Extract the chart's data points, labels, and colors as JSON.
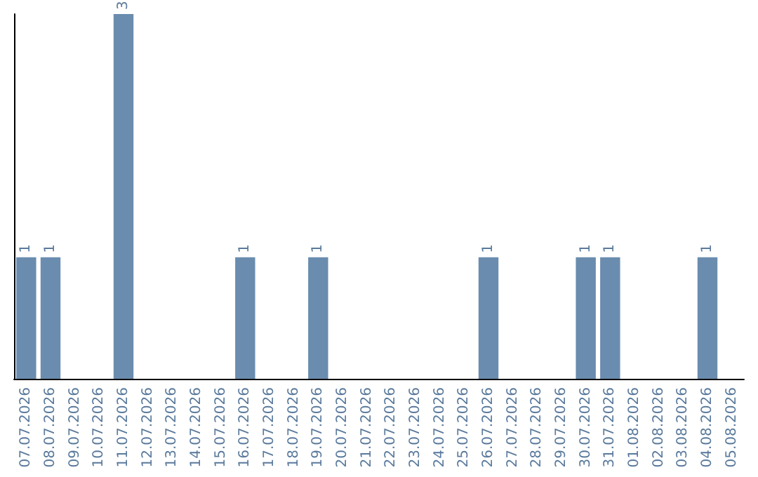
{
  "chart_data": {
    "type": "bar",
    "categories": [
      "07.07.2026",
      "08.07.2026",
      "09.07.2026",
      "10.07.2026",
      "11.07.2026",
      "12.07.2026",
      "13.07.2026",
      "14.07.2026",
      "15.07.2026",
      "16.07.2026",
      "17.07.2026",
      "18.07.2026",
      "19.07.2026",
      "20.07.2026",
      "21.07.2026",
      "22.07.2026",
      "23.07.2026",
      "24.07.2026",
      "25.07.2026",
      "26.07.2026",
      "27.07.2026",
      "28.07.2026",
      "29.07.2026",
      "30.07.2026",
      "31.07.2026",
      "01.08.2026",
      "02.08.2026",
      "03.08.2026",
      "04.08.2026",
      "05.08.2026"
    ],
    "values": [
      1,
      1,
      0,
      0,
      3,
      0,
      0,
      0,
      0,
      1,
      0,
      0,
      1,
      0,
      0,
      0,
      0,
      0,
      0,
      1,
      0,
      0,
      0,
      1,
      1,
      0,
      0,
      0,
      1,
      0
    ],
    "value_labels": [
      "1",
      "1",
      null,
      null,
      "3",
      null,
      null,
      null,
      null,
      "1",
      null,
      null,
      "1",
      null,
      null,
      null,
      null,
      null,
      null,
      "1",
      null,
      null,
      null,
      "1",
      "1",
      null,
      null,
      null,
      "1",
      null
    ],
    "color": "#6a8cae",
    "tick_labels": "x"
  }
}
